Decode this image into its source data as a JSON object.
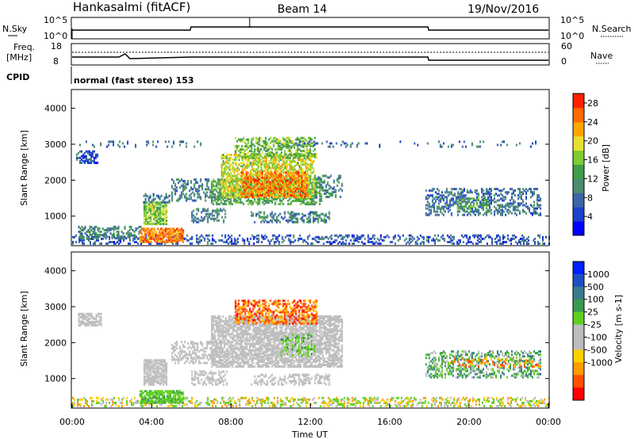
{
  "header": {
    "station": "Hankasalmi (fitACF)",
    "beam": "Beam 14",
    "date": "19/Nov/2016"
  },
  "top_panel": {
    "left_label": "N.Sky",
    "left_ticks": [
      "10^5",
      "10^0"
    ],
    "right_ticks": [
      "10^5",
      "10^0"
    ],
    "right_label": "N.Search",
    "right_label_style": "dotted"
  },
  "freq_panel": {
    "left_label_1": "Freq.",
    "left_label_2": "[MHz]",
    "left_ticks": [
      "18",
      "8"
    ],
    "right_ticks": [
      "60",
      "0"
    ],
    "right_label": "Nave"
  },
  "cpid_panel": {
    "label": "CPID",
    "mode_text": "normal (fast stereo) 153"
  },
  "colors": {
    "power": [
      "#0000ff",
      "#1c3fcc",
      "#3a65a8",
      "#4d8a70",
      "#3e9d48",
      "#7fcb35",
      "#e6e030",
      "#ffa500",
      "#ff6a00",
      "#ff2000"
    ],
    "velocity": [
      "#ff0000",
      "#ff5000",
      "#ff9a00",
      "#ffd000",
      "#bdbdbd",
      "#bdbdbd",
      "#60d020",
      "#3a9a50",
      "#3a7a8a",
      "#2050c0",
      "#0020ff"
    ],
    "ground": "#bebebe"
  },
  "chart_data": [
    {
      "type": "heatmap",
      "name": "power",
      "ylabel": "Slant Range [km]",
      "yticks": [
        "1000",
        "2000",
        "3000",
        "4000"
      ],
      "ylim": [
        200,
        4500
      ],
      "xlim": [
        0,
        24
      ],
      "colorbar_label": "Power [dB]",
      "colorbar_ticks": [
        "4",
        "8",
        "12",
        "16",
        "20",
        "24",
        "28"
      ],
      "colorbar_range": [
        0,
        30
      ],
      "regions": [
        {
          "t0": 0.0,
          "t1": 24.0,
          "r0": 200,
          "r1": 450,
          "v": 6,
          "d": 0.35
        },
        {
          "t0": 0.2,
          "t1": 1.3,
          "r0": 2450,
          "r1": 2800,
          "v": 6,
          "d": 0.55
        },
        {
          "t0": 0.2,
          "t1": 6.5,
          "r0": 2900,
          "r1": 3050,
          "v": 8,
          "d": 0.15
        },
        {
          "t0": 0.3,
          "t1": 3.5,
          "r0": 350,
          "r1": 700,
          "v": 10,
          "d": 0.45
        },
        {
          "t0": 3.4,
          "t1": 5.6,
          "r0": 250,
          "r1": 650,
          "v": 24,
          "d": 0.75
        },
        {
          "t0": 3.6,
          "t1": 4.8,
          "r0": 750,
          "r1": 1350,
          "v": 16,
          "d": 0.75
        },
        {
          "t0": 3.5,
          "t1": 4.9,
          "r0": 1350,
          "r1": 1600,
          "v": 8,
          "d": 0.45
        },
        {
          "t0": 5.0,
          "t1": 7.5,
          "r0": 1400,
          "r1": 2000,
          "v": 9,
          "d": 0.4
        },
        {
          "t0": 6.0,
          "t1": 7.8,
          "r0": 800,
          "r1": 1200,
          "v": 9,
          "d": 0.4
        },
        {
          "t0": 7.0,
          "t1": 12.6,
          "r0": 1300,
          "r1": 2000,
          "v": 13,
          "d": 0.55
        },
        {
          "t0": 7.5,
          "t1": 12.2,
          "r0": 1500,
          "r1": 2700,
          "v": 18,
          "d": 0.6
        },
        {
          "t0": 8.5,
          "t1": 11.8,
          "r0": 1500,
          "r1": 2200,
          "v": 24,
          "d": 0.55
        },
        {
          "t0": 8.2,
          "t1": 12.3,
          "r0": 2600,
          "r1": 3150,
          "v": 15,
          "d": 0.45
        },
        {
          "t0": 12.2,
          "t1": 13.6,
          "r0": 1500,
          "r1": 2100,
          "v": 10,
          "d": 0.35
        },
        {
          "t0": 9.0,
          "t1": 13.0,
          "r0": 800,
          "r1": 1100,
          "v": 9,
          "d": 0.4
        },
        {
          "t0": 10.8,
          "t1": 14.5,
          "r0": 2900,
          "r1": 3050,
          "v": 8,
          "d": 0.2
        },
        {
          "t0": 14.5,
          "t1": 17.5,
          "r0": 2900,
          "r1": 3050,
          "v": 7,
          "d": 0.05
        },
        {
          "t0": 17.8,
          "t1": 23.6,
          "r0": 1000,
          "r1": 1750,
          "v": 8,
          "d": 0.4
        },
        {
          "t0": 19.4,
          "t1": 21.0,
          "r0": 1100,
          "r1": 1500,
          "v": 13,
          "d": 0.4
        },
        {
          "t0": 17.8,
          "t1": 23.6,
          "r0": 2900,
          "r1": 3050,
          "v": 7,
          "d": 0.1
        }
      ]
    },
    {
      "type": "heatmap",
      "name": "velocity",
      "ylabel": "Slant Range [km]",
      "yticks": [
        "1000",
        "2000",
        "3000",
        "4000"
      ],
      "ylim": [
        200,
        4500
      ],
      "xlim": [
        0,
        24
      ],
      "xticks": [
        "00:00",
        "04:00",
        "08:00",
        "12:00",
        "16:00",
        "20:00",
        "00:00"
      ],
      "xlabel": "Time UT",
      "colorbar_label": "Velocity [m s-1]",
      "colorbar_ticks": [
        "1000",
        "500",
        "100",
        "25",
        "-25",
        "-100",
        "-500",
        "-1000"
      ],
      "regions": [
        {
          "t0": 0.0,
          "t1": 24.0,
          "r0": 200,
          "r1": 450,
          "v": "green-mix",
          "d": 0.35
        },
        {
          "t0": 0.3,
          "t1": 1.5,
          "r0": 2450,
          "r1": 2800,
          "v": "ground",
          "d": 0.65
        },
        {
          "t0": 3.6,
          "t1": 4.8,
          "r0": 800,
          "r1": 1500,
          "v": "ground",
          "d": 0.8
        },
        {
          "t0": 3.4,
          "t1": 5.6,
          "r0": 300,
          "r1": 650,
          "v": "green",
          "d": 0.75
        },
        {
          "t0": 5.0,
          "t1": 7.5,
          "r0": 1400,
          "r1": 2000,
          "v": "ground",
          "d": 0.45
        },
        {
          "t0": 6.0,
          "t1": 7.8,
          "r0": 800,
          "r1": 1200,
          "v": "ground",
          "d": 0.4
        },
        {
          "t0": 7.0,
          "t1": 13.6,
          "r0": 1300,
          "r1": 2700,
          "v": "ground",
          "d": 0.7
        },
        {
          "t0": 8.2,
          "t1": 12.3,
          "r0": 2500,
          "r1": 3150,
          "v": "orange",
          "d": 0.5
        },
        {
          "t0": 10.5,
          "t1": 12.2,
          "r0": 1600,
          "r1": 2200,
          "v": "green",
          "d": 0.25
        },
        {
          "t0": 9.0,
          "t1": 13.0,
          "r0": 800,
          "r1": 1100,
          "v": "ground",
          "d": 0.4
        },
        {
          "t0": 17.8,
          "t1": 23.6,
          "r0": 1000,
          "r1": 1750,
          "v": "teal",
          "d": 0.4
        },
        {
          "t0": 19.0,
          "t1": 23.6,
          "r0": 1300,
          "r1": 1550,
          "v": "orange-mix",
          "d": 0.2
        }
      ]
    }
  ]
}
